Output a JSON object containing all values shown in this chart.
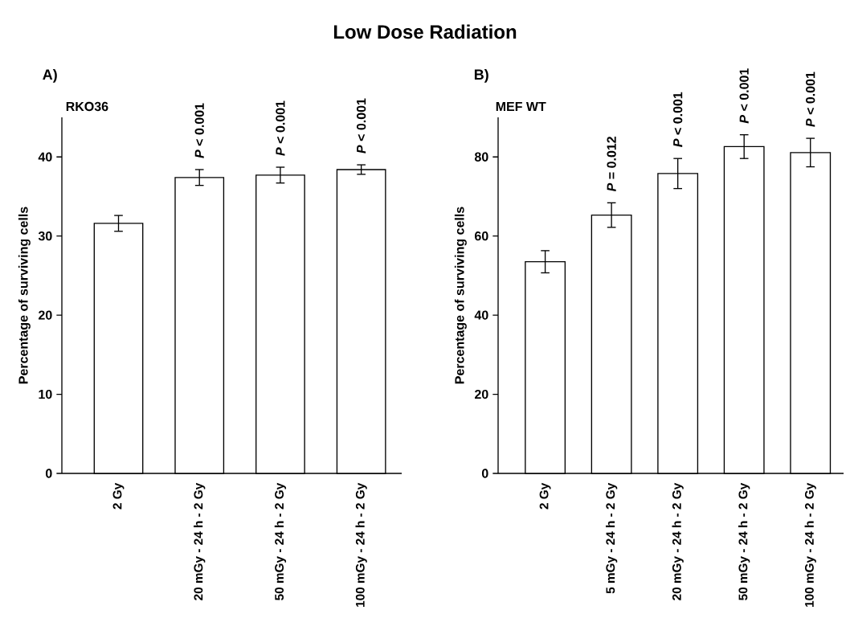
{
  "chart_data": [
    {
      "type": "bar",
      "title": "A)",
      "subtitle": "RKO36",
      "ylabel": "Percentage of surviving cells",
      "categories": [
        "2 Gy",
        "20 mGy - 24 h - 2 Gy",
        "50 mGy - 24 h - 2 Gy",
        "100 mGy - 24 h - 2 Gy"
      ],
      "values": [
        31.6,
        37.4,
        37.7,
        38.4
      ],
      "errors": [
        1.0,
        1.0,
        1.0,
        0.6
      ],
      "colors": [
        "#ffffff",
        "#ffffff",
        "#ffffff",
        "#ffffff"
      ],
      "ylim": [
        0,
        45
      ],
      "yticks": [
        0,
        10,
        20,
        30,
        40
      ],
      "annotations": [
        "Low Dose Radiation",
        {
          "text": "*P* < 0.001",
          "x": "20 mGy - 24 h - 2 Gy",
          "y": 37.4
        },
        {
          "text": "*P* < 0.001",
          "x": "50 mGy - 24 h - 2 Gy",
          "y": 37.7
        },
        {
          "text": "*P* < 0.001",
          "x": "100 mGy - 24 h - 2 Gy",
          "y": 38.4
        }
      ]
    },
    {
      "type": "bar",
      "title": "B)",
      "subtitle": "MEF WT",
      "ylabel": "Percentage of surviving cells",
      "categories": [
        "2 Gy",
        "5 mGy - 24 h - 2 Gy",
        "20 mGy - 24 h - 2 Gy",
        "50 mGy - 24 h - 2 Gy",
        "100 mGy - 24 h - 2 Gy"
      ],
      "values": [
        53.5,
        65.3,
        75.8,
        82.6,
        81.1
      ],
      "errors": [
        2.8,
        3.1,
        3.8,
        3.0,
        3.6
      ],
      "colors": [
        "#ffffff",
        "#ffffff",
        "#ffffff",
        "#ffffff",
        "#ffffff"
      ],
      "ylim": [
        0,
        90
      ],
      "yticks": [
        0,
        20,
        40,
        60,
        80
      ],
      "annotations": [
        {
          "text": "*P* = 0.012",
          "x": "5 mGy - 24 h - 2 Gy",
          "y": 65.3
        },
        {
          "text": "*P* < 0.001",
          "x": "20 mGy - 24 h - 2 Gy",
          "y": 75.8
        },
        {
          "text": "*P* < 0.001",
          "x": "50 mGy - 24 h - 2 Gy",
          "y": 82.6
        },
        {
          "text": "*P* < 0.001",
          "x": "100 mGy - 24 h - 2 Gy",
          "y": 81.1
        }
      ]
    }
  ]
}
